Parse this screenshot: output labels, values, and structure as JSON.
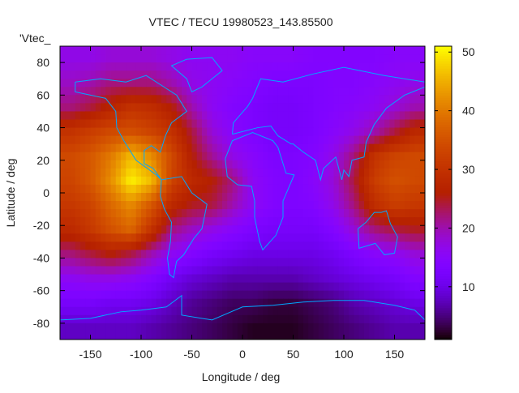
{
  "chart_data": {
    "type": "heatmap",
    "title": "VTEC / TECU 19980523_143.85500",
    "xlabel": "Longitude / deg",
    "ylabel": "Latitude / deg",
    "key_label": "'Vtec_",
    "xlim": [
      -180,
      180
    ],
    "ylim": [
      -90,
      90
    ],
    "xticks": [
      -150,
      -100,
      -50,
      0,
      50,
      100,
      150
    ],
    "yticks": [
      -80,
      -60,
      -40,
      -20,
      0,
      20,
      40,
      60,
      80
    ],
    "cbrange": [
      1,
      51
    ],
    "cbticks": [
      10,
      20,
      30,
      40,
      50
    ],
    "colormap": "gnuplot rgbformulae 7,5,15 (black-blue-purple-red-orange-yellow)",
    "coastline_color": "#00a8ff",
    "x": [
      -170,
      -150,
      -130,
      -110,
      -90,
      -70,
      -50,
      -30,
      -10,
      10,
      30,
      50,
      70,
      90,
      110,
      130,
      150,
      170
    ],
    "y": [
      82.5,
      67.5,
      52.5,
      37.5,
      22.5,
      7.5,
      -7.5,
      -22.5,
      -37.5,
      -52.5,
      -67.5,
      -82.5
    ],
    "z": [
      [
        17,
        17,
        18,
        18,
        18,
        17,
        16,
        16,
        16,
        15,
        15,
        15,
        14,
        14,
        14,
        14,
        15,
        15
      ],
      [
        19,
        20,
        22,
        22,
        22,
        20,
        17,
        16,
        15,
        14,
        13,
        13,
        13,
        14,
        14,
        15,
        16,
        17
      ],
      [
        22,
        24,
        27,
        30,
        29,
        26,
        20,
        16,
        14,
        13,
        12,
        12,
        13,
        14,
        15,
        16,
        18,
        20
      ],
      [
        30,
        32,
        34,
        35,
        33,
        30,
        24,
        18,
        15,
        13,
        12,
        12,
        13,
        15,
        17,
        20,
        24,
        28
      ],
      [
        34,
        36,
        40,
        46,
        42,
        34,
        26,
        21,
        17,
        15,
        13,
        13,
        14,
        17,
        22,
        30,
        33,
        34
      ],
      [
        33,
        36,
        42,
        50,
        46,
        33,
        28,
        26,
        22,
        16,
        14,
        13,
        15,
        18,
        24,
        32,
        35,
        34
      ],
      [
        31,
        33,
        38,
        42,
        36,
        28,
        25,
        24,
        20,
        16,
        14,
        13,
        14,
        17,
        22,
        29,
        32,
        31
      ],
      [
        28,
        31,
        35,
        38,
        30,
        22,
        19,
        17,
        15,
        13,
        12,
        12,
        12,
        14,
        18,
        22,
        24,
        25
      ],
      [
        22,
        24,
        26,
        24,
        20,
        16,
        14,
        12,
        11,
        10,
        10,
        10,
        10,
        11,
        13,
        15,
        16,
        18
      ],
      [
        16,
        17,
        17,
        16,
        14,
        11,
        9,
        8,
        7,
        7,
        7,
        7,
        8,
        9,
        10,
        11,
        12,
        14
      ],
      [
        12,
        12,
        11,
        11,
        10,
        8,
        6,
        5,
        4,
        4,
        3,
        3,
        4,
        5,
        7,
        8,
        9,
        10
      ],
      [
        8,
        8,
        8,
        8,
        7,
        6,
        5,
        4,
        3,
        2,
        2,
        2,
        3,
        4,
        5,
        6,
        7,
        7
      ]
    ]
  }
}
